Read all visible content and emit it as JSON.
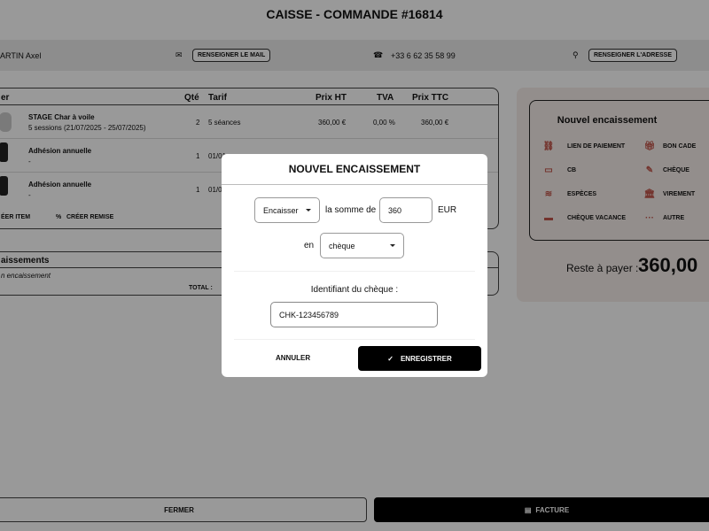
{
  "header": {
    "title": "CAISSE - COMMANDE #16814"
  },
  "info": {
    "name": "ARTIN Axel",
    "mail_button": "RENSEIGNER LE MAIL",
    "phone": "+33 6 62 35 58 99",
    "address_button": "RENSEIGNER L'ADRESSE"
  },
  "table": {
    "headers": [
      "er",
      "Qté",
      "Tarif",
      "Prix HT",
      "TVA",
      "Prix TTC"
    ],
    "rows": [
      {
        "name": "STAGE Char à voile",
        "sub": "5 sessions (21/07/2025 - 25/07/2025)",
        "qty": "2",
        "tarif": "5 séances",
        "ht": "360,00 €",
        "tva": "0,00 %",
        "ttc": "360,00 €"
      },
      {
        "name": "Adhésion annuelle",
        "sub": "-",
        "qty": "1",
        "tarif": "01/01",
        "ht": "",
        "tva": "",
        "ttc": ""
      },
      {
        "name": "Adhésion annuelle",
        "sub": "-",
        "qty": "1",
        "tarif": "01/01",
        "ht": "",
        "tva": "",
        "ttc": ""
      }
    ],
    "create_item": "ÉER ITEM",
    "create_discount": "CRÉER REMISE"
  },
  "encaissements": {
    "title": "aissements",
    "empty": "n encaissement",
    "total_label": "TOTAL :"
  },
  "right_panel": {
    "title": "Nouvel encaissement",
    "methods": [
      {
        "label": "LIEN DE PAIEMENT",
        "icon": "link-icon"
      },
      {
        "label": "BON CADE",
        "icon": "gift-icon"
      },
      {
        "label": "CB",
        "icon": "credit-card-icon"
      },
      {
        "label": "CHÈQUE",
        "icon": "cheque-icon"
      },
      {
        "label": "ESPÈCES",
        "icon": "coins-icon"
      },
      {
        "label": "VIREMENT",
        "icon": "bank-icon"
      },
      {
        "label": "CHÈQUE VACANCE",
        "icon": "ticket-icon"
      },
      {
        "label": "AUTRE",
        "icon": "more-icon"
      }
    ],
    "remaining_label": "Reste à payer :",
    "remaining_value": "360,00",
    "accent": "#c0564b"
  },
  "footer": {
    "close": "FERMER",
    "invoice": "FACTURE"
  },
  "modal": {
    "title": "NOUVEL ENCAISSEMENT",
    "action_select": "Encaisser",
    "sum_label": "la somme de",
    "amount": "360",
    "currency": "EUR",
    "in_label": "en",
    "method_select": "chèque",
    "id_label": "Identifiant du chèque :",
    "id_value": "CHK-123456789",
    "cancel": "ANNULER",
    "save": "ENREGISTRER"
  }
}
